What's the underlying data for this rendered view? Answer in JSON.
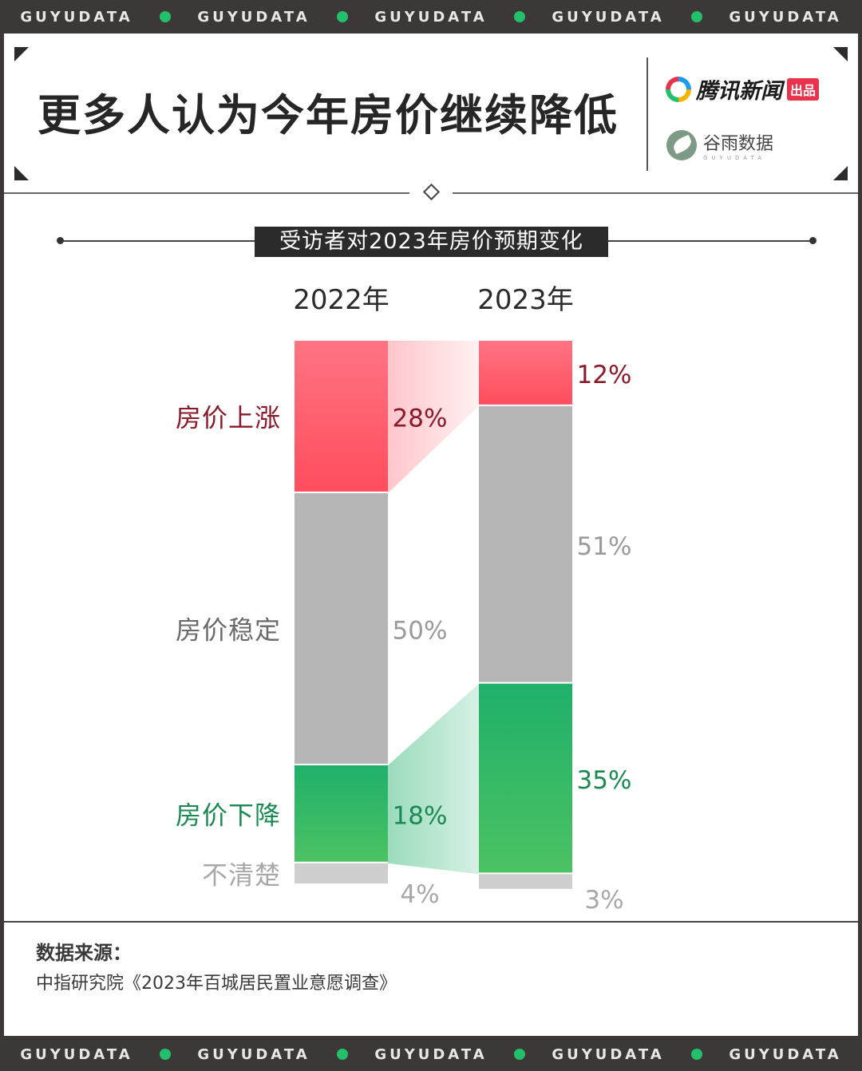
{
  "strip": {
    "word": "GUYUDATA"
  },
  "header": {
    "title": "更多人认为今年房价继续降低",
    "tencent_brand": "腾讯新闻",
    "tencent_badge": "出品",
    "guyu_name": "谷雨数据",
    "guyu_sub": "GUYUDATA"
  },
  "colors": {
    "rise": "#ff4d5e",
    "stable": "#b6b6b6",
    "fall": "#1fb06a",
    "unknown": "#cfcfcf",
    "rise_text": "#8a1a2a",
    "fall_text": "#1a8a52",
    "stable_text": "#9a9a9a"
  },
  "chart_data": {
    "type": "bar",
    "title": "受访者对2023年房价预期变化",
    "stacked": true,
    "categories": [
      "2022年",
      "2023年"
    ],
    "series": [
      {
        "name": "房价上涨",
        "values": [
          28,
          12
        ]
      },
      {
        "name": "房价稳定",
        "values": [
          50,
          51
        ]
      },
      {
        "name": "房价下降",
        "values": [
          18,
          35
        ]
      },
      {
        "name": "不清楚",
        "values": [
          4,
          3
        ]
      }
    ],
    "value_labels": {
      "2022年": [
        "28%",
        "50%",
        "18%",
        "4%"
      ],
      "2023年": [
        "12%",
        "51%",
        "35%",
        "3%"
      ]
    },
    "ylim": [
      0,
      100
    ]
  },
  "source": {
    "title": "数据来源：",
    "text": "中指研究院《2023年百城居民置业意愿调查》"
  }
}
